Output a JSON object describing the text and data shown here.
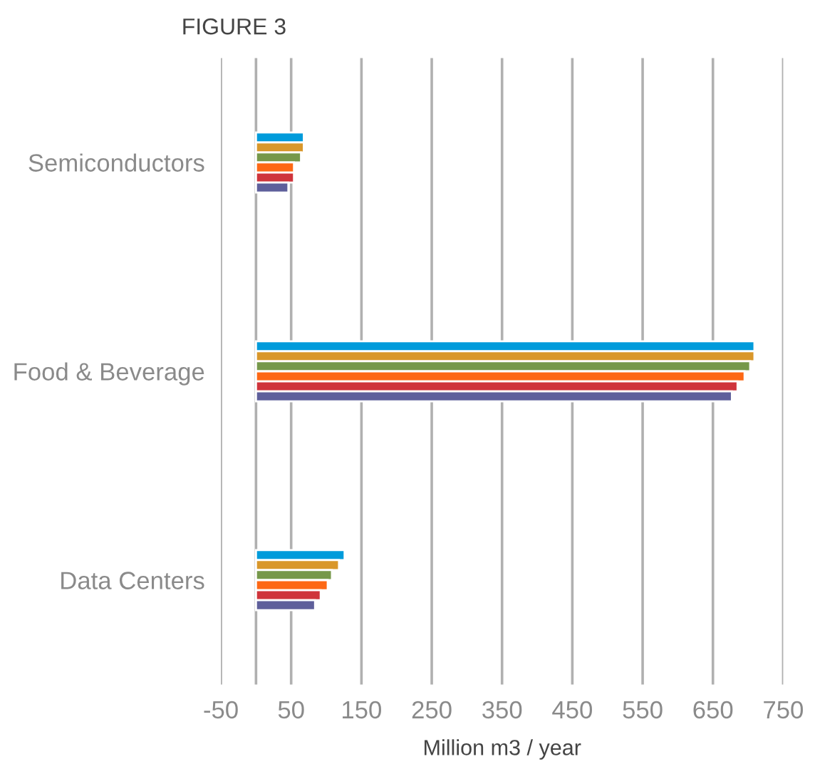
{
  "chart_data": {
    "type": "bar",
    "orientation": "horizontal",
    "title": "FIGURE 3",
    "xlabel": "Million m3 / year",
    "categories": [
      "Semiconductors",
      "Food & Beverage",
      "Data Centers"
    ],
    "series": [
      {
        "color": "#009bdb",
        "values": [
          68,
          709,
          126
        ]
      },
      {
        "color": "#d9972a",
        "values": [
          68,
          709,
          118
        ]
      },
      {
        "color": "#76984a",
        "values": [
          64,
          703,
          108
        ]
      },
      {
        "color": "#fd6815",
        "values": [
          54,
          695,
          102
        ]
      },
      {
        "color": "#cf343b",
        "values": [
          54,
          685,
          92
        ]
      },
      {
        "color": "#5e5f9b",
        "values": [
          46,
          677,
          84
        ]
      }
    ],
    "xlim": [
      -50,
      750
    ],
    "xticks": [
      -50,
      {
        "value": 0,
        "label": null
      },
      50,
      150,
      250,
      350,
      450,
      550,
      650,
      750
    ],
    "grid": "x",
    "legend": false
  }
}
